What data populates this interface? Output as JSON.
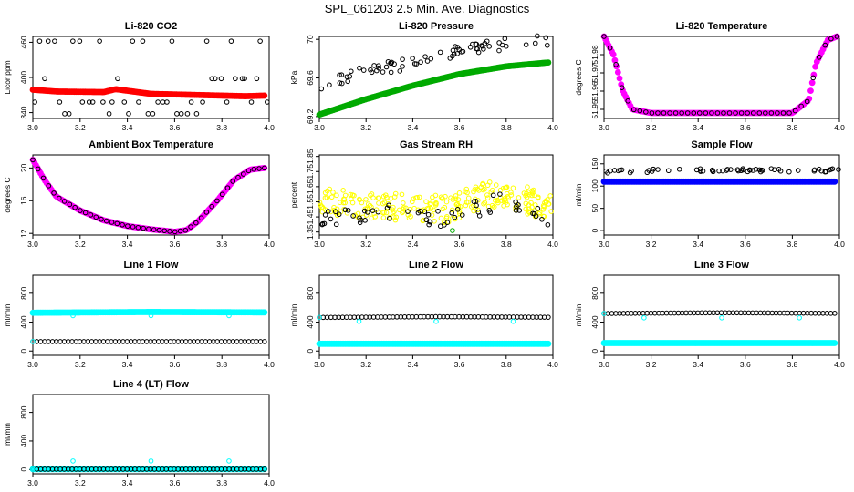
{
  "page": {
    "title": "SPL_061203  2.5 Min. Ave. Diagnostics"
  },
  "chart_data": [
    {
      "type": "scatter",
      "title": "Li-820 CO2",
      "ylabel": "Licor ppm",
      "xlim": [
        3.0,
        4.0
      ],
      "ylim": [
        330,
        470
      ],
      "xticks": [
        "3.0",
        "3.2",
        "3.4",
        "3.6",
        "3.8",
        "4.0"
      ],
      "yticks": [
        340,
        400,
        460
      ],
      "series": [
        {
          "color": "#000000",
          "style": "hollow",
          "kind": "levels",
          "levels": [
            338,
            358,
            398,
            462
          ],
          "count": 48
        },
        {
          "color": "#ff0000",
          "style": "dense",
          "kind": "line",
          "points": [
            [
              3.0,
              379
            ],
            [
              3.1,
              376
            ],
            [
              3.3,
              375
            ],
            [
              3.35,
              380
            ],
            [
              3.5,
              372
            ],
            [
              3.7,
              370
            ],
            [
              3.9,
              368
            ],
            [
              3.98,
              369
            ]
          ]
        }
      ]
    },
    {
      "type": "scatter",
      "title": "Li-820 Pressure",
      "ylabel": "kPa",
      "xlim": [
        3.0,
        4.0
      ],
      "ylim": [
        69.18,
        70.03
      ],
      "xticks": [
        "3.0",
        "3.2",
        "3.4",
        "3.6",
        "3.8",
        "4.0"
      ],
      "yticks": [
        69.2,
        69.6,
        70.0
      ],
      "series": [
        {
          "color": "#000000",
          "style": "hollow",
          "kind": "band",
          "points": [
            [
              3.0,
              69.5
            ],
            [
              3.2,
              69.68
            ],
            [
              3.4,
              69.75
            ],
            [
              3.6,
              69.88
            ],
            [
              3.8,
              69.95
            ],
            [
              4.0,
              70.0
            ]
          ],
          "spread": 0.06,
          "count": 70
        },
        {
          "color": "#00aa00",
          "style": "dense",
          "kind": "line",
          "points": [
            [
              3.0,
              69.22
            ],
            [
              3.2,
              69.38
            ],
            [
              3.4,
              69.52
            ],
            [
              3.6,
              69.64
            ],
            [
              3.8,
              69.72
            ],
            [
              3.98,
              69.76
            ]
          ]
        }
      ]
    },
    {
      "type": "scatter",
      "title": "Li-820 Temperature",
      "ylabel": "degrees C",
      "xlim": [
        3.0,
        4.0
      ],
      "ylim": [
        51.945,
        51.99
      ],
      "xticks": [
        "3.0",
        "3.2",
        "3.4",
        "3.6",
        "3.8",
        "4.0"
      ],
      "yticks": [
        51.95,
        51.96,
        51.97,
        51.98
      ],
      "series": [
        {
          "color": "#ff00ff",
          "style": "dense",
          "kind": "line",
          "points": [
            [
              3.0,
              51.99
            ],
            [
              3.04,
              51.98
            ],
            [
              3.08,
              51.96
            ],
            [
              3.12,
              51.95
            ],
            [
              3.2,
              51.948
            ],
            [
              3.8,
              51.948
            ],
            [
              3.87,
              51.955
            ],
            [
              3.9,
              51.975
            ],
            [
              3.95,
              51.988
            ],
            [
              3.99,
              51.99
            ]
          ]
        },
        {
          "color": "#000000",
          "style": "hollow",
          "kind": "line",
          "points": [
            [
              3.0,
              51.99
            ],
            [
              3.04,
              51.98
            ],
            [
              3.08,
              51.96
            ],
            [
              3.12,
              51.95
            ],
            [
              3.2,
              51.948
            ],
            [
              3.8,
              51.948
            ],
            [
              3.87,
              51.955
            ],
            [
              3.9,
              51.975
            ],
            [
              3.95,
              51.988
            ],
            [
              3.99,
              51.99
            ]
          ],
          "count": 40
        }
      ]
    },
    {
      "type": "scatter",
      "title": "Ambient Box Temperature",
      "ylabel": "degrees C",
      "xlim": [
        3.0,
        4.0
      ],
      "ylim": [
        11.8,
        21.6
      ],
      "xticks": [
        "3.0",
        "3.2",
        "3.4",
        "3.6",
        "3.8",
        "4.0"
      ],
      "yticks": [
        12,
        16,
        20
      ],
      "series": [
        {
          "color": "#ff00ff",
          "style": "dense",
          "kind": "line",
          "points": [
            [
              3.0,
              21.0
            ],
            [
              3.05,
              18.5
            ],
            [
              3.1,
              16.5
            ],
            [
              3.2,
              14.8
            ],
            [
              3.3,
              13.6
            ],
            [
              3.4,
              12.9
            ],
            [
              3.5,
              12.5
            ],
            [
              3.6,
              12.2
            ],
            [
              3.65,
              12.4
            ],
            [
              3.7,
              13.5
            ],
            [
              3.78,
              16.0
            ],
            [
              3.85,
              18.5
            ],
            [
              3.92,
              19.8
            ],
            [
              3.98,
              20.0
            ]
          ]
        },
        {
          "color": "#000000",
          "style": "hollow",
          "kind": "line",
          "points": [
            [
              3.0,
              21.0
            ],
            [
              3.05,
              18.5
            ],
            [
              3.1,
              16.5
            ],
            [
              3.2,
              14.8
            ],
            [
              3.3,
              13.6
            ],
            [
              3.4,
              12.9
            ],
            [
              3.5,
              12.5
            ],
            [
              3.6,
              12.2
            ],
            [
              3.65,
              12.4
            ],
            [
              3.7,
              13.5
            ],
            [
              3.78,
              16.0
            ],
            [
              3.85,
              18.5
            ],
            [
              3.92,
              19.8
            ],
            [
              3.98,
              20.0
            ]
          ],
          "count": 45
        }
      ]
    },
    {
      "type": "scatter",
      "title": "Gas Stream RH",
      "ylabel": "percent",
      "xlim": [
        3.0,
        4.0
      ],
      "ylim": [
        1.33,
        1.86
      ],
      "xticks": [
        "3.0",
        "3.2",
        "3.4",
        "3.6",
        "3.8",
        "4.0"
      ],
      "yticks": [
        1.35,
        1.45,
        1.55,
        1.65,
        1.75,
        1.85
      ],
      "series": [
        {
          "color": "#ffff00",
          "style": "hollow",
          "kind": "band",
          "points": [
            [
              3.0,
              1.55
            ],
            [
              3.3,
              1.52
            ],
            [
              3.55,
              1.5
            ],
            [
              3.72,
              1.6
            ],
            [
              3.85,
              1.58
            ],
            [
              4.0,
              1.5
            ]
          ],
          "spread": 0.09,
          "count": 260
        },
        {
          "color": "#000000",
          "style": "hollow",
          "kind": "band",
          "points": [
            [
              3.0,
              1.45
            ],
            [
              3.3,
              1.48
            ],
            [
              3.55,
              1.44
            ],
            [
              3.75,
              1.55
            ],
            [
              3.9,
              1.52
            ],
            [
              4.0,
              1.38
            ]
          ],
          "spread": 0.06,
          "count": 60
        },
        {
          "color": "#00aa00",
          "style": "hollow",
          "kind": "points",
          "points": [
            [
              3.57,
              1.36
            ]
          ]
        }
      ]
    },
    {
      "type": "scatter",
      "title": "Sample Flow",
      "ylabel": "ml/min",
      "xlim": [
        3.0,
        4.0
      ],
      "ylim": [
        -10,
        170
      ],
      "xticks": [
        "3.0",
        "3.2",
        "3.4",
        "3.6",
        "3.8",
        "4.0"
      ],
      "yticks": [
        0,
        50,
        100,
        150
      ],
      "series": [
        {
          "color": "#0000ff",
          "style": "dense",
          "kind": "line",
          "points": [
            [
              3.0,
              110
            ],
            [
              3.98,
              110
            ]
          ]
        },
        {
          "color": "#000000",
          "style": "hollow",
          "kind": "band",
          "points": [
            [
              3.0,
              133
            ],
            [
              3.5,
              136
            ],
            [
              3.98,
              135
            ]
          ],
          "spread": 4,
          "count": 60
        }
      ]
    },
    {
      "type": "scatter",
      "title": "Line 1 Flow",
      "ylabel": "ml/min",
      "xlim": [
        3.0,
        4.0
      ],
      "ylim": [
        -60,
        1050
      ],
      "xticks": [
        "3.0",
        "3.2",
        "3.4",
        "3.6",
        "3.8",
        "4.0"
      ],
      "yticks": [
        0,
        400,
        800
      ],
      "series": [
        {
          "color": "#00ffff",
          "style": "dense",
          "kind": "line",
          "points": [
            [
              3.0,
              530
            ],
            [
              3.5,
              540
            ],
            [
              3.98,
              535
            ]
          ]
        },
        {
          "color": "#00ffff",
          "style": "hollow",
          "kind": "points",
          "points": [
            [
              3.17,
              490
            ],
            [
              3.5,
              490
            ],
            [
              3.83,
              490
            ]
          ]
        },
        {
          "color": "#000000",
          "style": "hollow",
          "kind": "line",
          "points": [
            [
              3.0,
              130
            ],
            [
              3.98,
              130
            ]
          ],
          "count": 60
        },
        {
          "color": "#00ffff",
          "style": "hollow",
          "kind": "points",
          "points": [
            [
              3.0,
              130
            ]
          ]
        }
      ]
    },
    {
      "type": "scatter",
      "title": "Line 2 Flow",
      "ylabel": "ml/min",
      "xlim": [
        3.0,
        4.0
      ],
      "ylim": [
        -60,
        1050
      ],
      "xticks": [
        "3.0",
        "3.2",
        "3.4",
        "3.6",
        "3.8",
        "4.0"
      ],
      "yticks": [
        0,
        400,
        800
      ],
      "series": [
        {
          "color": "#00ffff",
          "style": "dense",
          "kind": "line",
          "points": [
            [
              3.0,
              100
            ],
            [
              3.98,
              100
            ]
          ]
        },
        {
          "color": "#000000",
          "style": "hollow",
          "kind": "line",
          "points": [
            [
              3.0,
              465
            ],
            [
              3.5,
              475
            ],
            [
              3.98,
              468
            ]
          ],
          "count": 60
        },
        {
          "color": "#00ffff",
          "style": "hollow",
          "kind": "points",
          "points": [
            [
              3.0,
              465
            ],
            [
              3.17,
              410
            ],
            [
              3.5,
              410
            ],
            [
              3.83,
              410
            ]
          ]
        }
      ]
    },
    {
      "type": "scatter",
      "title": "Line 3 Flow",
      "ylabel": "ml/min",
      "xlim": [
        3.0,
        4.0
      ],
      "ylim": [
        -60,
        1050
      ],
      "xticks": [
        "3.0",
        "3.2",
        "3.4",
        "3.6",
        "3.8",
        "4.0"
      ],
      "yticks": [
        0,
        400,
        800
      ],
      "series": [
        {
          "color": "#00ffff",
          "style": "dense",
          "kind": "line",
          "points": [
            [
              3.0,
              110
            ],
            [
              3.98,
              110
            ]
          ]
        },
        {
          "color": "#000000",
          "style": "hollow",
          "kind": "line",
          "points": [
            [
              3.0,
              520
            ],
            [
              3.5,
              530
            ],
            [
              3.98,
              522
            ]
          ],
          "count": 60
        },
        {
          "color": "#00ffff",
          "style": "hollow",
          "kind": "points",
          "points": [
            [
              3.0,
              520
            ],
            [
              3.17,
              460
            ],
            [
              3.5,
              460
            ],
            [
              3.83,
              460
            ]
          ]
        }
      ]
    },
    {
      "type": "scatter",
      "title": "Line 4 (LT) Flow",
      "ylabel": "ml/min",
      "xlim": [
        3.0,
        4.0
      ],
      "ylim": [
        -60,
        1050
      ],
      "xticks": [
        "3.0",
        "3.2",
        "3.4",
        "3.6",
        "3.8",
        "4.0"
      ],
      "yticks": [
        0,
        400,
        800
      ],
      "series": [
        {
          "color": "#00ffff",
          "style": "dense",
          "kind": "line",
          "points": [
            [
              3.0,
              5
            ],
            [
              3.98,
              5
            ]
          ]
        },
        {
          "color": "#000000",
          "style": "hollow",
          "kind": "line",
          "points": [
            [
              3.0,
              5
            ],
            [
              3.98,
              5
            ]
          ],
          "count": 60
        },
        {
          "color": "#00ffff",
          "style": "hollow",
          "kind": "points",
          "points": [
            [
              3.0,
              5
            ],
            [
              3.17,
              120
            ],
            [
              3.5,
              120
            ],
            [
              3.83,
              120
            ]
          ]
        }
      ]
    }
  ]
}
